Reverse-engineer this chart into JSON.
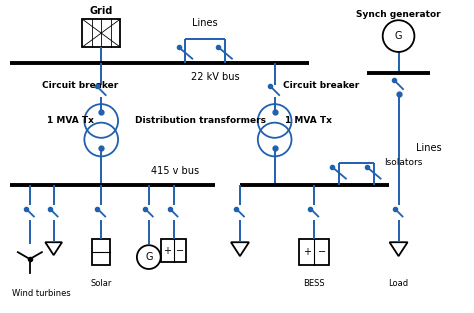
{
  "bg_color": "#ffffff",
  "line_color": "#2060b0",
  "bus_color": "#000000",
  "text_color": "#000000",
  "figsize": [
    4.74,
    3.13
  ],
  "dpi": 100,
  "labels": {
    "grid": "Grid",
    "lines_top": "Lines",
    "bus_22kv": "22 kV bus",
    "circuit_breaker_left": "Circuit breaker",
    "circuit_breaker_right": "Circuit breaker",
    "transformer_left": "1 MVA Tx",
    "transformer_right": "1 MVA Tx",
    "dist_transformer": "Distribution transformers",
    "bus_415v": "415 v bus",
    "isolators": "Isolators",
    "synch_gen": "Synch generator",
    "lines_right": "Lines",
    "wind_turbines": "Wind turbines",
    "solar": "Solar",
    "bess": "BESS",
    "load": "Load"
  }
}
